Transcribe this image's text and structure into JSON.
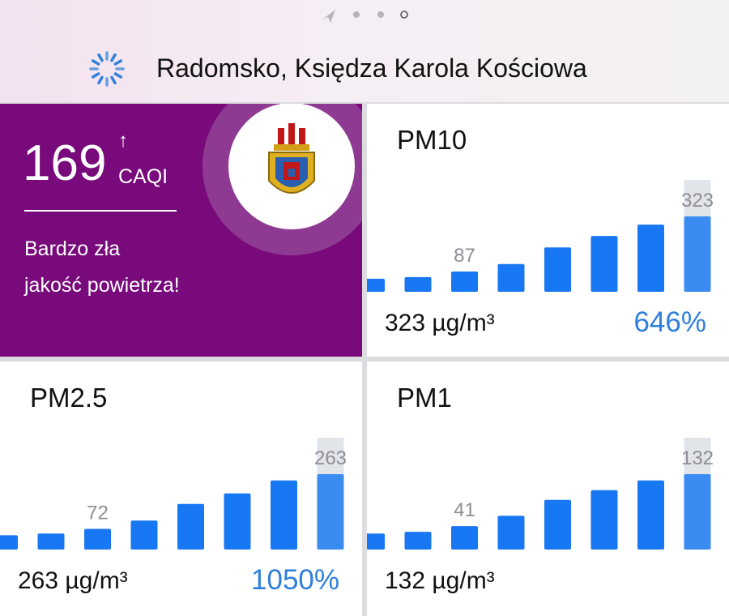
{
  "header": {
    "location": "Radomsko, Księdza Karola Kościowa"
  },
  "caqi": {
    "value": 169,
    "trend": "↑",
    "unit": "CAQI",
    "description": [
      "Bardzo zła",
      "jakość powietrza!"
    ]
  },
  "panels": [
    {
      "title": "PM10",
      "values": [
        56,
        63,
        87,
        119,
        190,
        239,
        288,
        323
      ],
      "current": "323 µg/m³",
      "percent": "646%"
    },
    {
      "title": "PM2.5",
      "values": [
        50,
        56,
        72,
        101,
        159,
        196,
        241,
        263
      ],
      "current": "263 µg/m³",
      "percent": "1050%"
    },
    {
      "title": "PM1",
      "values": [
        28,
        31,
        41,
        59,
        87,
        104,
        121,
        132
      ],
      "current": "132 µg/m³"
    }
  ]
}
